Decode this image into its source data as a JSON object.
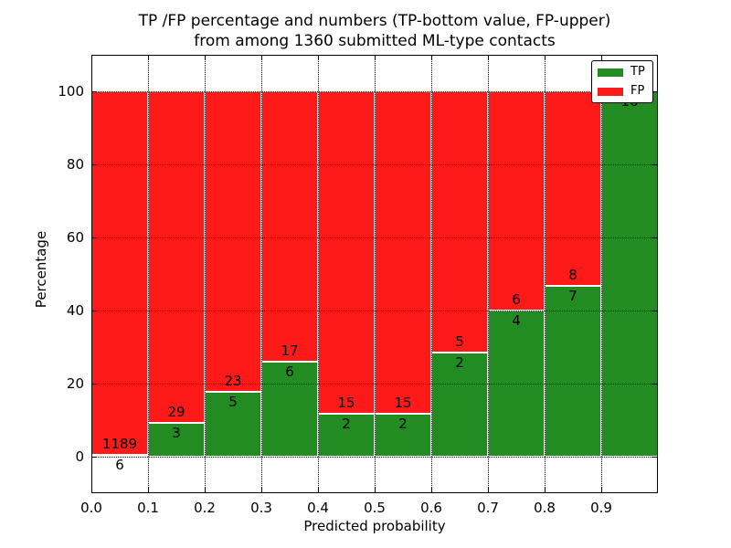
{
  "title": {
    "line1": "TP /FP percentage and numbers (TP-bottom value, FP-upper)",
    "line2": "from among 1360 submitted ML-type contacts"
  },
  "chart_data": {
    "type": "bar",
    "stacked": true,
    "units": "percent",
    "title": "TP /FP percentage and numbers (TP-bottom value, FP-upper) from among 1360 submitted ML-type contacts",
    "total_contacts": 1360,
    "xlabel": "Predicted probability",
    "ylabel": "Percentage",
    "bin_edges": [
      0.0,
      0.1,
      0.2,
      0.3,
      0.4,
      0.5,
      0.6,
      0.7,
      0.8,
      0.9,
      1.0
    ],
    "series": [
      {
        "name": "TP",
        "color": "#228B22",
        "position": "bottom",
        "counts": [
          6,
          3,
          5,
          6,
          2,
          2,
          2,
          4,
          7,
          16
        ],
        "percent": [
          0.5,
          9.4,
          17.9,
          26.1,
          11.8,
          11.8,
          28.6,
          40.0,
          46.7,
          100.0
        ]
      },
      {
        "name": "FP",
        "color": "#FF1A1A",
        "position": "top",
        "counts": [
          1189,
          29,
          23,
          17,
          15,
          15,
          5,
          6,
          8,
          0
        ],
        "percent": [
          99.5,
          90.6,
          82.1,
          73.9,
          88.2,
          88.2,
          71.4,
          60.0,
          53.3,
          0.0
        ]
      }
    ],
    "x_tick_labels": [
      "0.0",
      "0.1",
      "0.2",
      "0.3",
      "0.4",
      "0.5",
      "0.6",
      "0.7",
      "0.8",
      "0.9"
    ],
    "y_ticks": [
      0,
      20,
      40,
      60,
      80,
      100
    ],
    "y_tick_labels": [
      "0",
      "20",
      "40",
      "60",
      "80",
      "100"
    ],
    "xlim": [
      0.0,
      1.0
    ],
    "ylim": [
      -10,
      110
    ],
    "grid": {
      "visible": true,
      "style": "dotted",
      "color": "#000000",
      "axes": "both"
    },
    "legend": {
      "position": "upper right",
      "entries": [
        {
          "label": "TP",
          "color": "#228B22"
        },
        {
          "label": "FP",
          "color": "#FF1A1A"
        }
      ]
    }
  }
}
